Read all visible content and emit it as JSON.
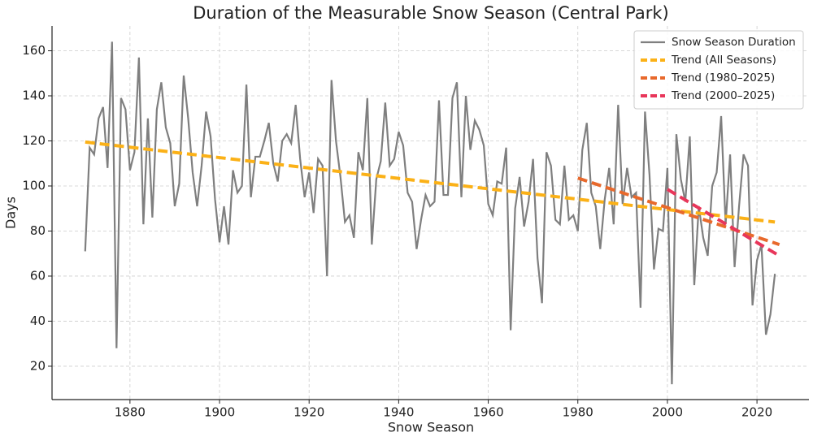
{
  "chart_data": {
    "type": "line",
    "title": "Duration of the Measurable Snow Season (Central Park)",
    "xlabel": "Snow Season",
    "ylabel": "Days",
    "xlim": [
      1862.6,
      2031.6
    ],
    "ylim": [
      5.2,
      171
    ],
    "xticks": [
      1880,
      1900,
      1920,
      1940,
      1960,
      1980,
      2000,
      2020
    ],
    "yticks": [
      20,
      40,
      60,
      80,
      100,
      120,
      140,
      160
    ],
    "grid": true,
    "legend": "upper right",
    "series": [
      {
        "name": "Snow Season Duration",
        "color": "#7f7f7f",
        "dash": false,
        "x": [
          1870,
          1871,
          1872,
          1873,
          1874,
          1875,
          1876,
          1877,
          1878,
          1879,
          1880,
          1881,
          1882,
          1883,
          1884,
          1885,
          1886,
          1887,
          1888,
          1889,
          1890,
          1891,
          1892,
          1893,
          1894,
          1895,
          1896,
          1897,
          1898,
          1899,
          1900,
          1901,
          1902,
          1903,
          1904,
          1905,
          1906,
          1907,
          1908,
          1909,
          1910,
          1911,
          1912,
          1913,
          1914,
          1915,
          1916,
          1917,
          1918,
          1919,
          1920,
          1921,
          1922,
          1923,
          1924,
          1925,
          1926,
          1927,
          1928,
          1929,
          1930,
          1931,
          1932,
          1933,
          1934,
          1935,
          1936,
          1937,
          1938,
          1939,
          1940,
          1941,
          1942,
          1943,
          1944,
          1945,
          1946,
          1947,
          1948,
          1949,
          1950,
          1951,
          1952,
          1953,
          1954,
          1955,
          1956,
          1957,
          1958,
          1959,
          1960,
          1961,
          1962,
          1963,
          1964,
          1965,
          1966,
          1967,
          1968,
          1969,
          1970,
          1971,
          1972,
          1973,
          1974,
          1975,
          1976,
          1977,
          1978,
          1979,
          1980,
          1981,
          1982,
          1983,
          1984,
          1985,
          1986,
          1987,
          1988,
          1989,
          1990,
          1991,
          1992,
          1993,
          1994,
          1995,
          1996,
          1997,
          1998,
          1999,
          2000,
          2001,
          2002,
          2003,
          2004,
          2005,
          2006,
          2007,
          2008,
          2009,
          2010,
          2011,
          2012,
          2013,
          2014,
          2015,
          2016,
          2017,
          2018,
          2019,
          2020,
          2021,
          2022,
          2023,
          2024
        ],
        "values": [
          71,
          117,
          114,
          130,
          135,
          108,
          164,
          28,
          139,
          134,
          107,
          115,
          157,
          83,
          130,
          86,
          134,
          146,
          126,
          119,
          91,
          101,
          149,
          130,
          106,
          91,
          109,
          133,
          122,
          94,
          75,
          91,
          74,
          107,
          97,
          100,
          145,
          95,
          113,
          113,
          120,
          128,
          110,
          102,
          120,
          123,
          119,
          136,
          112,
          95,
          106,
          88,
          112,
          109,
          60,
          147,
          120,
          104,
          84,
          87,
          77,
          115,
          107,
          139,
          74,
          103,
          111,
          137,
          109,
          112,
          124,
          118,
          97,
          93,
          72,
          85,
          96,
          91,
          93,
          138,
          96,
          96,
          139,
          146,
          95,
          140,
          116,
          129,
          125,
          118,
          92,
          87,
          102,
          101,
          117,
          36,
          90,
          104,
          82,
          93,
          112,
          68,
          48,
          115,
          109,
          85,
          83,
          109,
          85,
          87,
          80,
          116,
          128,
          97,
          91,
          72,
          94,
          108,
          83,
          136,
          92,
          108,
          95,
          97,
          46,
          133,
          105,
          63,
          81,
          80,
          108,
          12,
          123,
          103,
          93,
          122,
          56,
          91,
          77,
          69,
          100,
          106,
          131,
          83,
          114,
          64,
          91,
          114,
          109,
          47,
          67,
          74,
          34,
          43,
          61
        ]
      },
      {
        "name": "Trend (All Seasons)",
        "color": "#fbb117",
        "dash": true,
        "x": [
          1870,
          2024
        ],
        "values": [
          119.5,
          84
        ]
      },
      {
        "name": "Trend (1980–2025)",
        "color": "#e8692c",
        "dash": true,
        "x": [
          1980,
          2025
        ],
        "values": [
          103.5,
          74
        ]
      },
      {
        "name": "Trend (2000–2025)",
        "color": "#e8365a",
        "dash": true,
        "x": [
          2000,
          2025
        ],
        "values": [
          98.5,
          69
        ]
      }
    ]
  }
}
